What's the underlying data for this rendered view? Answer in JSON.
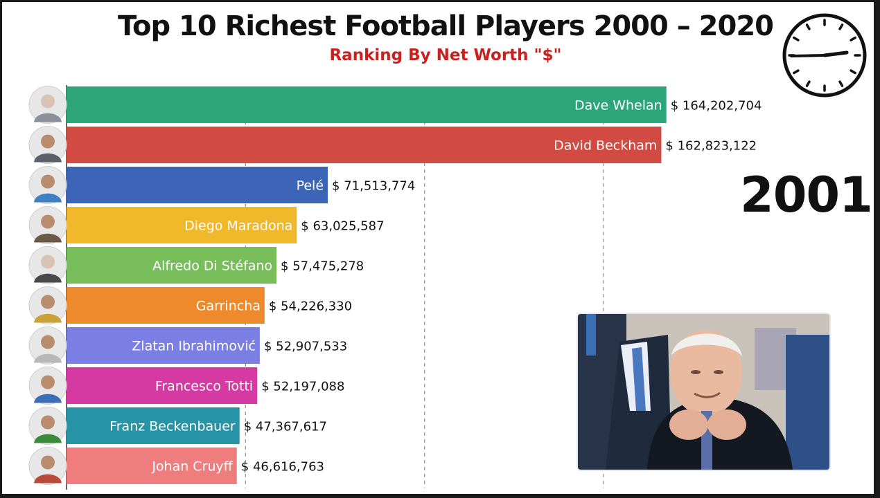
{
  "title": "Top 10 Richest Football Players 2000 – 2020",
  "subtitle": "Ranking By Net Worth \"$\"",
  "year": "2001",
  "chart_data": {
    "type": "bar",
    "orientation": "horizontal",
    "title": "Top 10 Richest Football Players 2000 – 2020",
    "subtitle": "Ranking By Net Worth \"$\"",
    "grid": true,
    "gridline_values": [
      49000000,
      98000000,
      147000000
    ],
    "xlim": [
      0,
      169000000
    ],
    "categories": [
      "Dave Whelan",
      "David Beckham",
      "Pelé",
      "Diego Maradona",
      "Alfredo Di Stéfano",
      "Garrincha",
      "Zlatan Ibrahimović",
      "Francesco Totti",
      "Franz Beckenbauer",
      "Johan Cruyff"
    ],
    "values": [
      164202704,
      162823122,
      71513774,
      63025587,
      57475278,
      54226330,
      52907533,
      52197088,
      47367617,
      46616763
    ],
    "value_labels": [
      "$ 164,202,704",
      "$ 162,823,122",
      "$ 71,513,774",
      "$ 63,025,587",
      "$ 57,475,278",
      "$ 54,226,330",
      "$ 52,907,533",
      "$ 52,197,088",
      "$ 47,367,617",
      "$ 46,616,763"
    ],
    "colors": [
      "#2ca57a",
      "#d24b42",
      "#3c64b7",
      "#f2b82b",
      "#77bd5a",
      "#ef8a2c",
      "#7b7fe3",
      "#d43aa1",
      "#2793a6",
      "#f07d7d"
    ],
    "avatar_colors": [
      "#8a8f99",
      "#5a5f68",
      "#3f7fc2",
      "#6b5a45",
      "#4a4a4a",
      "#c9a23a",
      "#b8b8b8",
      "#3a6fb8",
      "#3c8a3c",
      "#b84a3a"
    ]
  }
}
